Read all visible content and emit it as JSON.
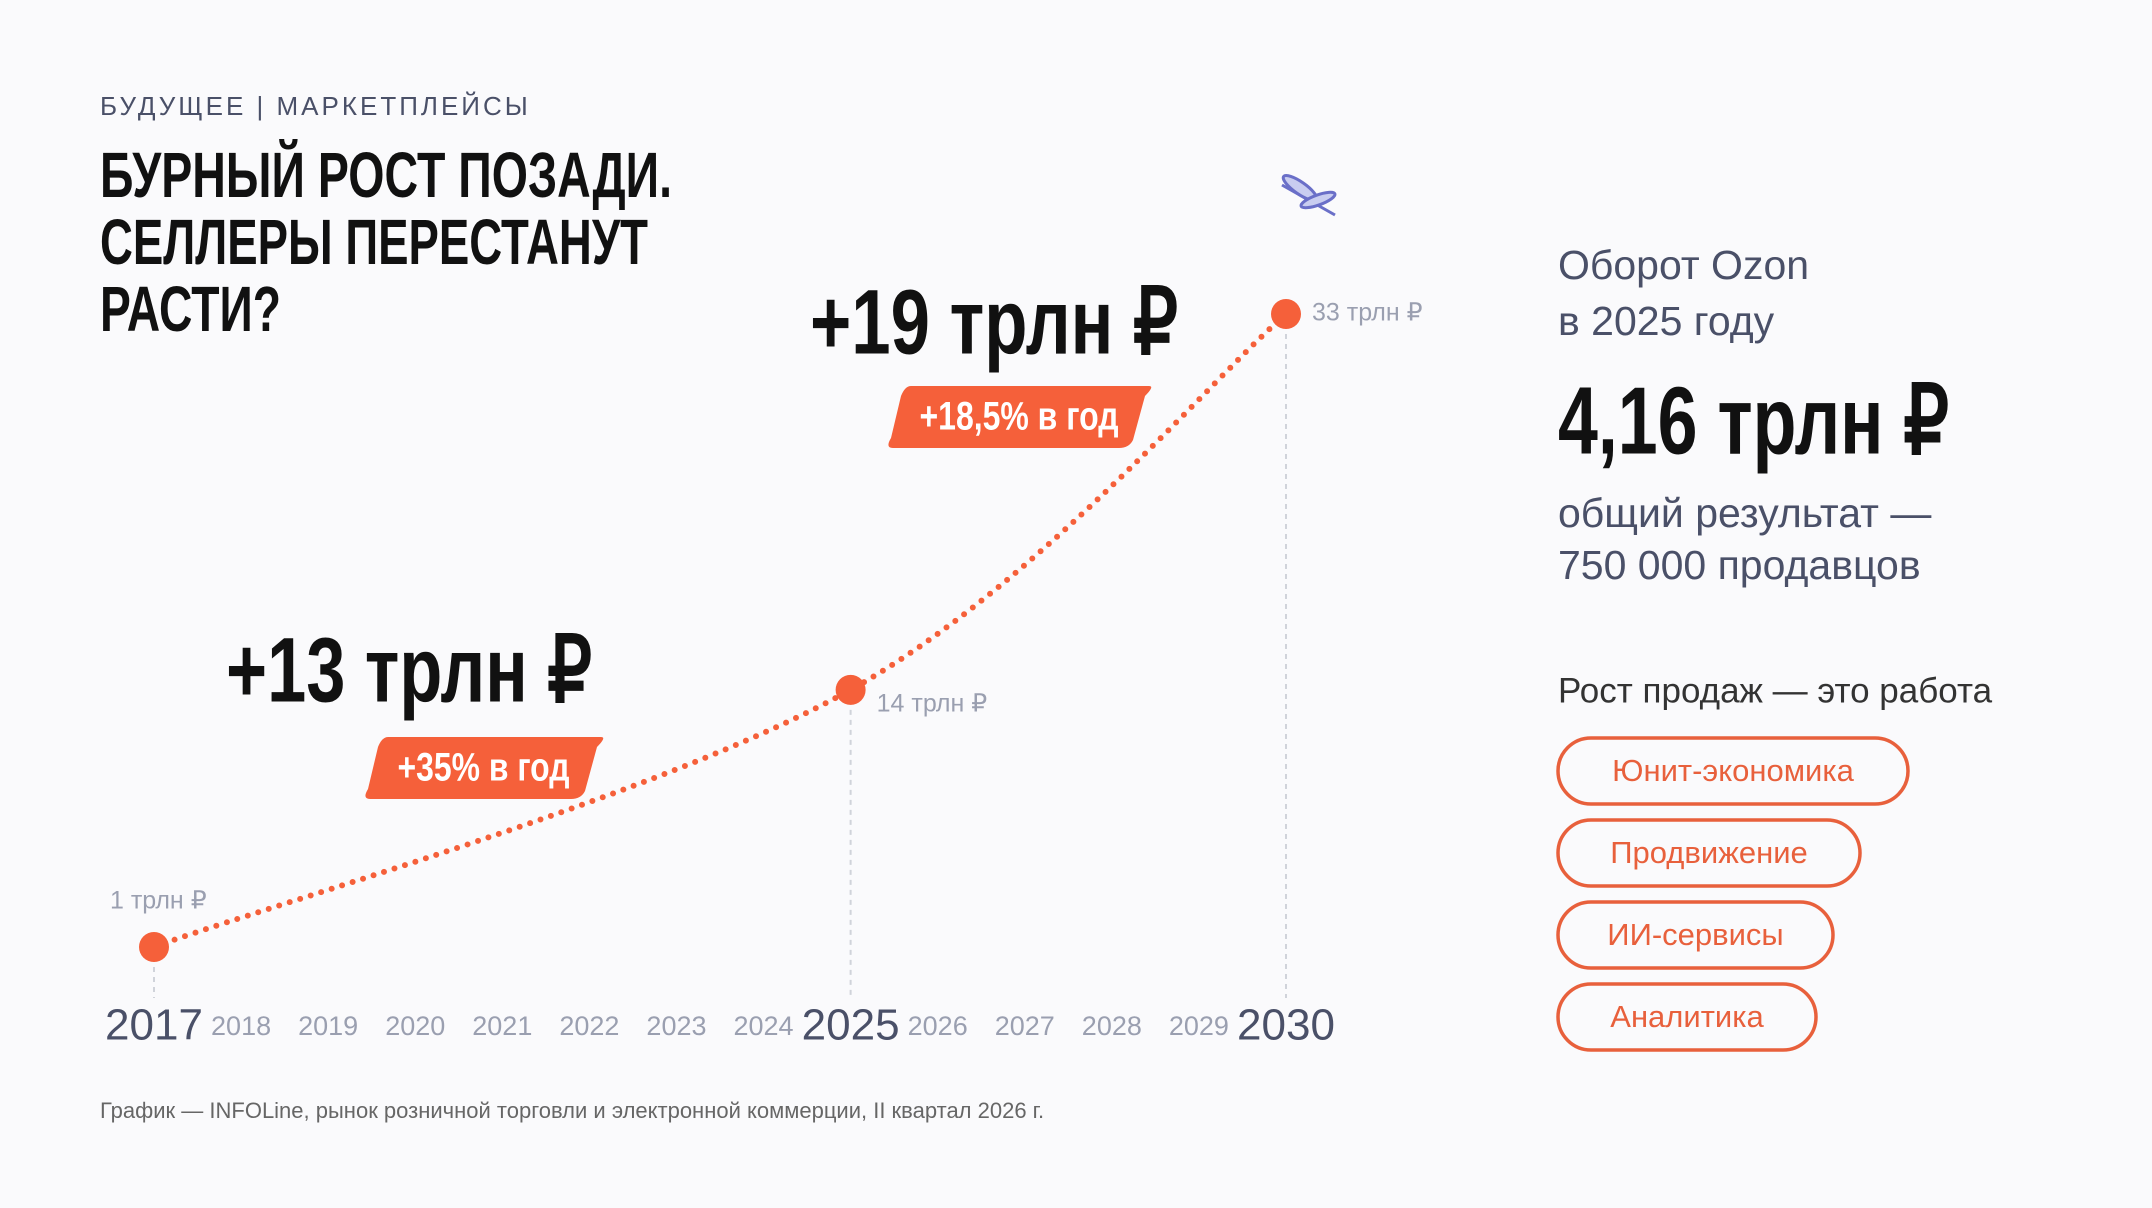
{
  "header": {
    "subtitle": "БУДУЩЕЕ | МАРКЕТПЛЕЙСЫ",
    "title": [
      "БУРНЫЙ РОСТ ПОЗАДИ.",
      "СЕЛЛЕРЫ ПЕРЕСТАНУТ",
      "РАСТИ?"
    ]
  },
  "chart_data": {
    "type": "line",
    "x": [
      2017,
      2025,
      2030
    ],
    "values": [
      1,
      14,
      33
    ],
    "value_labels": [
      "1 трлн ₽",
      "14 трлн ₽",
      "33 трлн ₽"
    ],
    "color": "#f5603a",
    "xlim": [
      2017,
      2030
    ],
    "xticks": [
      2017,
      2018,
      2019,
      2020,
      2021,
      2022,
      2023,
      2024,
      2025,
      2026,
      2027,
      2028,
      2029,
      2030
    ],
    "annotations": [
      {
        "text": "+13 трлн ₽",
        "badge": "+35% в год"
      },
      {
        "text": "+19 трлн ₽",
        "badge": "+18,5% в год"
      }
    ]
  },
  "sidebar": {
    "heading": [
      "Оборот Ozon",
      "в 2025 году"
    ],
    "value": "4,16 трлн ₽",
    "note": [
      "общий результат —",
      "750 000 продавцов"
    ],
    "tags_title": "Рост продаж — это работа",
    "tags": [
      "Юнит-экономика",
      "Продвижение",
      "ИИ-сервисы",
      "Аналитика"
    ]
  },
  "footer": "График — INFOLine, рынок розничной торговли и электронной коммерции, II квартал 2026 г."
}
